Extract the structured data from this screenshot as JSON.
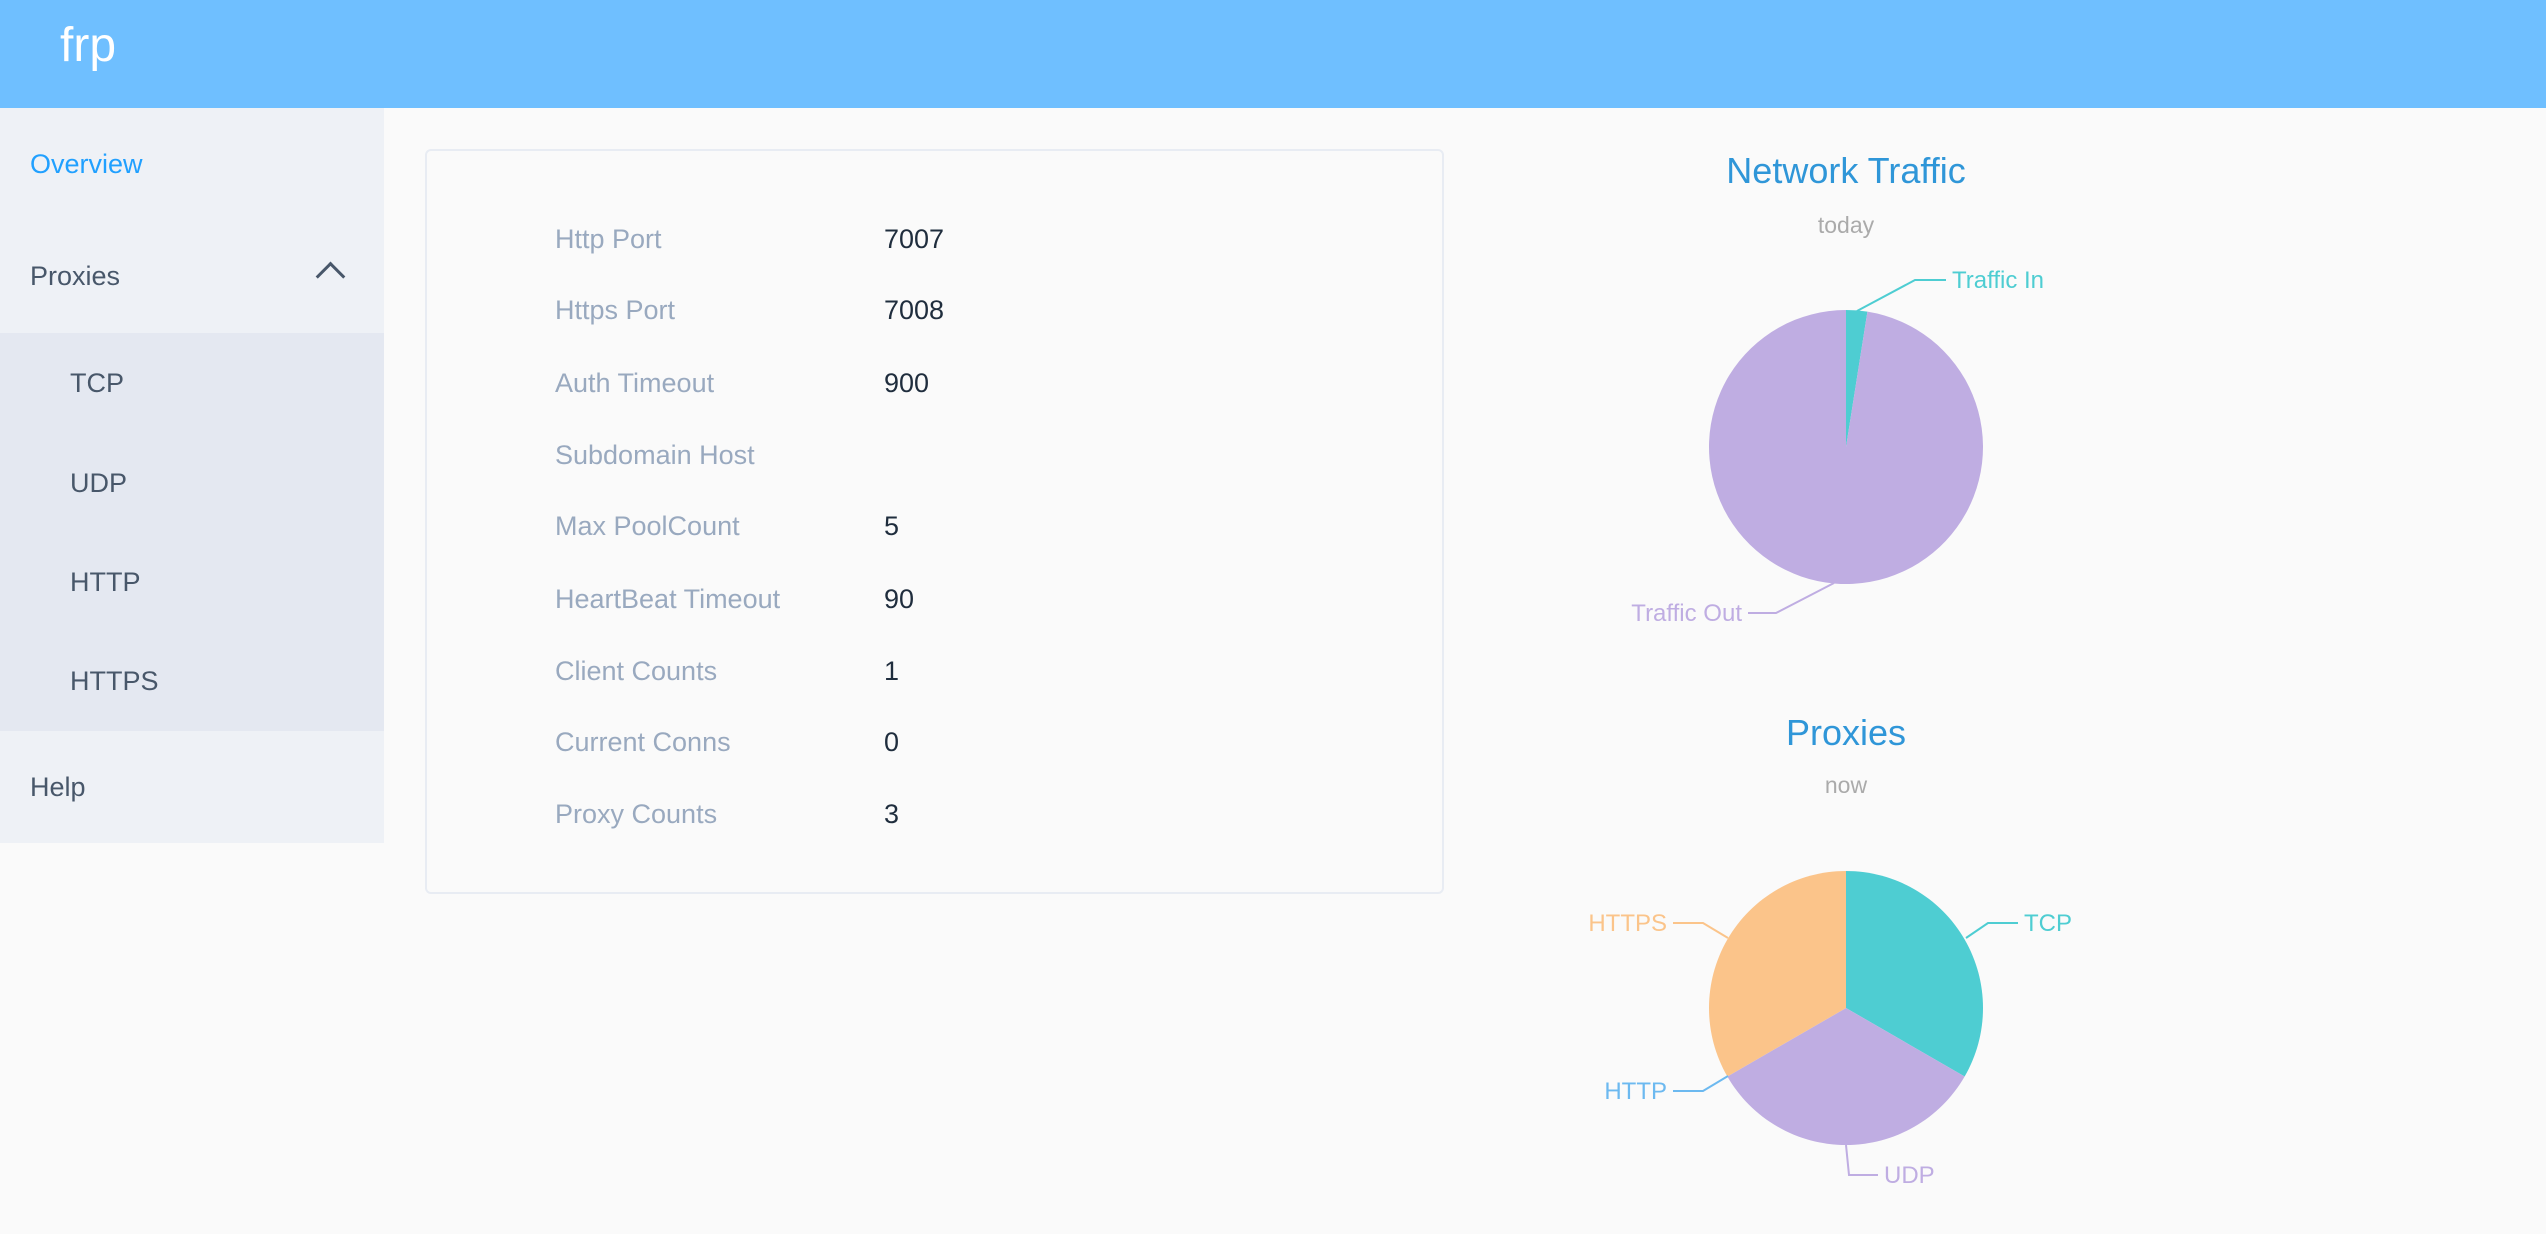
{
  "header": {
    "brand": "frp"
  },
  "sidebar": {
    "items": [
      {
        "label": "Overview",
        "active": true
      },
      {
        "label": "Proxies",
        "expanded": true,
        "icon": "chevron-up-icon"
      },
      {
        "label": "Help"
      }
    ],
    "proxies_submenu": [
      "TCP",
      "UDP",
      "HTTP",
      "HTTPS"
    ]
  },
  "overview": {
    "rows": [
      {
        "label": "Http Port",
        "value": "7007"
      },
      {
        "label": "Https Port",
        "value": "7008"
      },
      {
        "label": "Auth Timeout",
        "value": "900"
      },
      {
        "label": "Subdomain Host",
        "value": ""
      },
      {
        "label": "Max PoolCount",
        "value": "5"
      },
      {
        "label": "HeartBeat Timeout",
        "value": "90"
      },
      {
        "label": "Client Counts",
        "value": "1"
      },
      {
        "label": "Current Conns",
        "value": "0"
      },
      {
        "label": "Proxy Counts",
        "value": "3"
      }
    ]
  },
  "chart_data": [
    {
      "type": "pie",
      "title": "Network Traffic",
      "subtitle": "today",
      "slices": [
        {
          "name": "Traffic In",
          "value": 2.5,
          "color": "#4ecdd2"
        },
        {
          "name": "Traffic Out",
          "value": 97.5,
          "color": "#bfade2"
        }
      ]
    },
    {
      "type": "pie",
      "title": "Proxies",
      "subtitle": "now",
      "slices": [
        {
          "name": "TCP",
          "value": 1,
          "color": "#4ecdd2"
        },
        {
          "name": "UDP",
          "value": 1,
          "color": "#bfade2"
        },
        {
          "name": "HTTP",
          "value": 0,
          "color": "#6cb9f0"
        },
        {
          "name": "HTTPS",
          "value": 1,
          "color": "#fbc48a"
        }
      ]
    }
  ]
}
